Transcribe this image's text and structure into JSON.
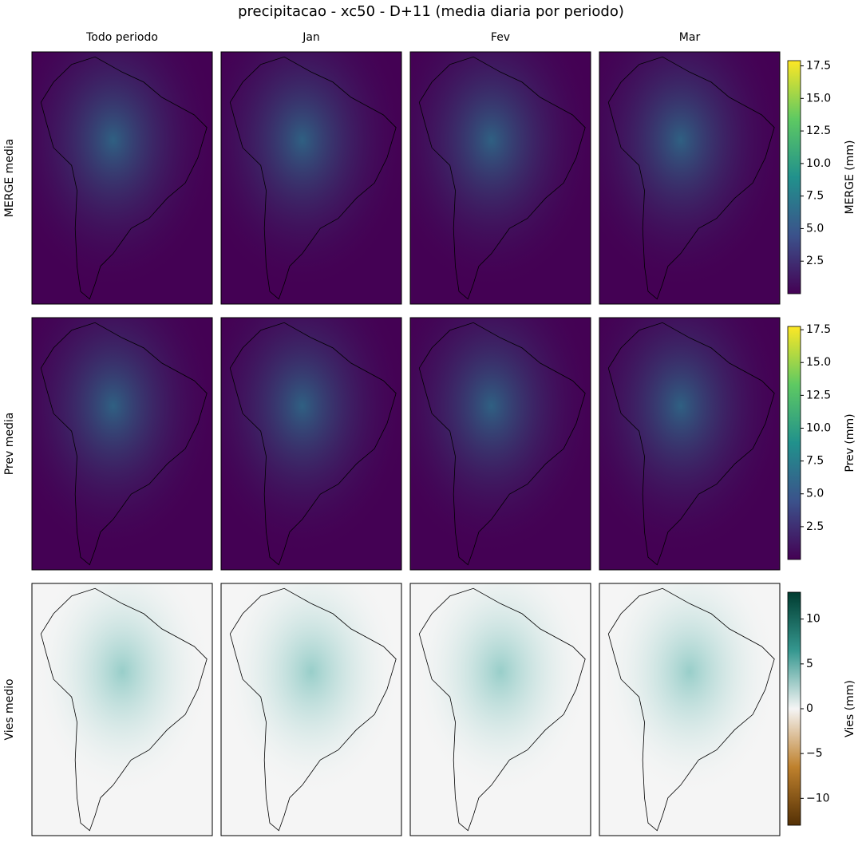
{
  "title": "precipitacao - xc50 - D+11 (media diaria por periodo)",
  "columns": [
    "Todo periodo",
    "Jan",
    "Fev",
    "Mar"
  ],
  "rows": [
    {
      "label": "MERGE media",
      "colorbar": {
        "label": "MERGE (mm)",
        "lim": [
          0,
          17.9
        ],
        "colormap": "viridis",
        "ticks": [
          2.5,
          {
            "value": 5,
            "label": "5.0"
          },
          7.5,
          {
            "value": 10,
            "label": "10.0"
          },
          12.5,
          {
            "value": 15,
            "label": "15.0"
          },
          17.5
        ]
      }
    },
    {
      "label": "Prev media",
      "colorbar": {
        "label": "Prev (mm)",
        "lim": [
          0,
          17.75
        ],
        "colormap": "viridis",
        "ticks": [
          2.5,
          {
            "value": 5,
            "label": "5.0"
          },
          7.5,
          {
            "value": 10,
            "label": "10.0"
          },
          12.5,
          {
            "value": 15,
            "label": "15.0"
          },
          17.5
        ]
      }
    },
    {
      "label": "Vies medio",
      "colorbar": {
        "label": "Vies (mm)",
        "lim": [
          -13,
          13
        ],
        "colormap": "BrBG",
        "ticks": [
          {
            "value": -10,
            "label": "−10"
          },
          {
            "value": -5,
            "label": "−5"
          },
          0,
          5,
          10
        ]
      }
    }
  ]
}
